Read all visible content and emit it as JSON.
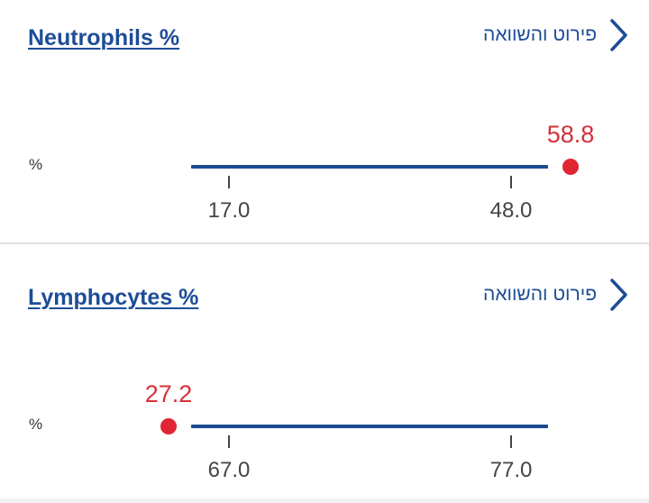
{
  "tests": [
    {
      "title": "Neutrophils %",
      "details_label": "פירוט והשוואה",
      "unit": "%",
      "range_low": "17.0",
      "range_high": "48.0",
      "value": "58.8",
      "value_status": "above-range",
      "status_color": "#e02632",
      "range_color": "#1b4a8f"
    },
    {
      "title": "Lymphocytes %",
      "details_label": "פירוט והשוואה",
      "unit": "%",
      "range_low": "67.0",
      "range_high": "77.0",
      "value": "27.2",
      "value_status": "below-range",
      "status_color": "#e02632",
      "range_color": "#1b4a8f"
    }
  ]
}
